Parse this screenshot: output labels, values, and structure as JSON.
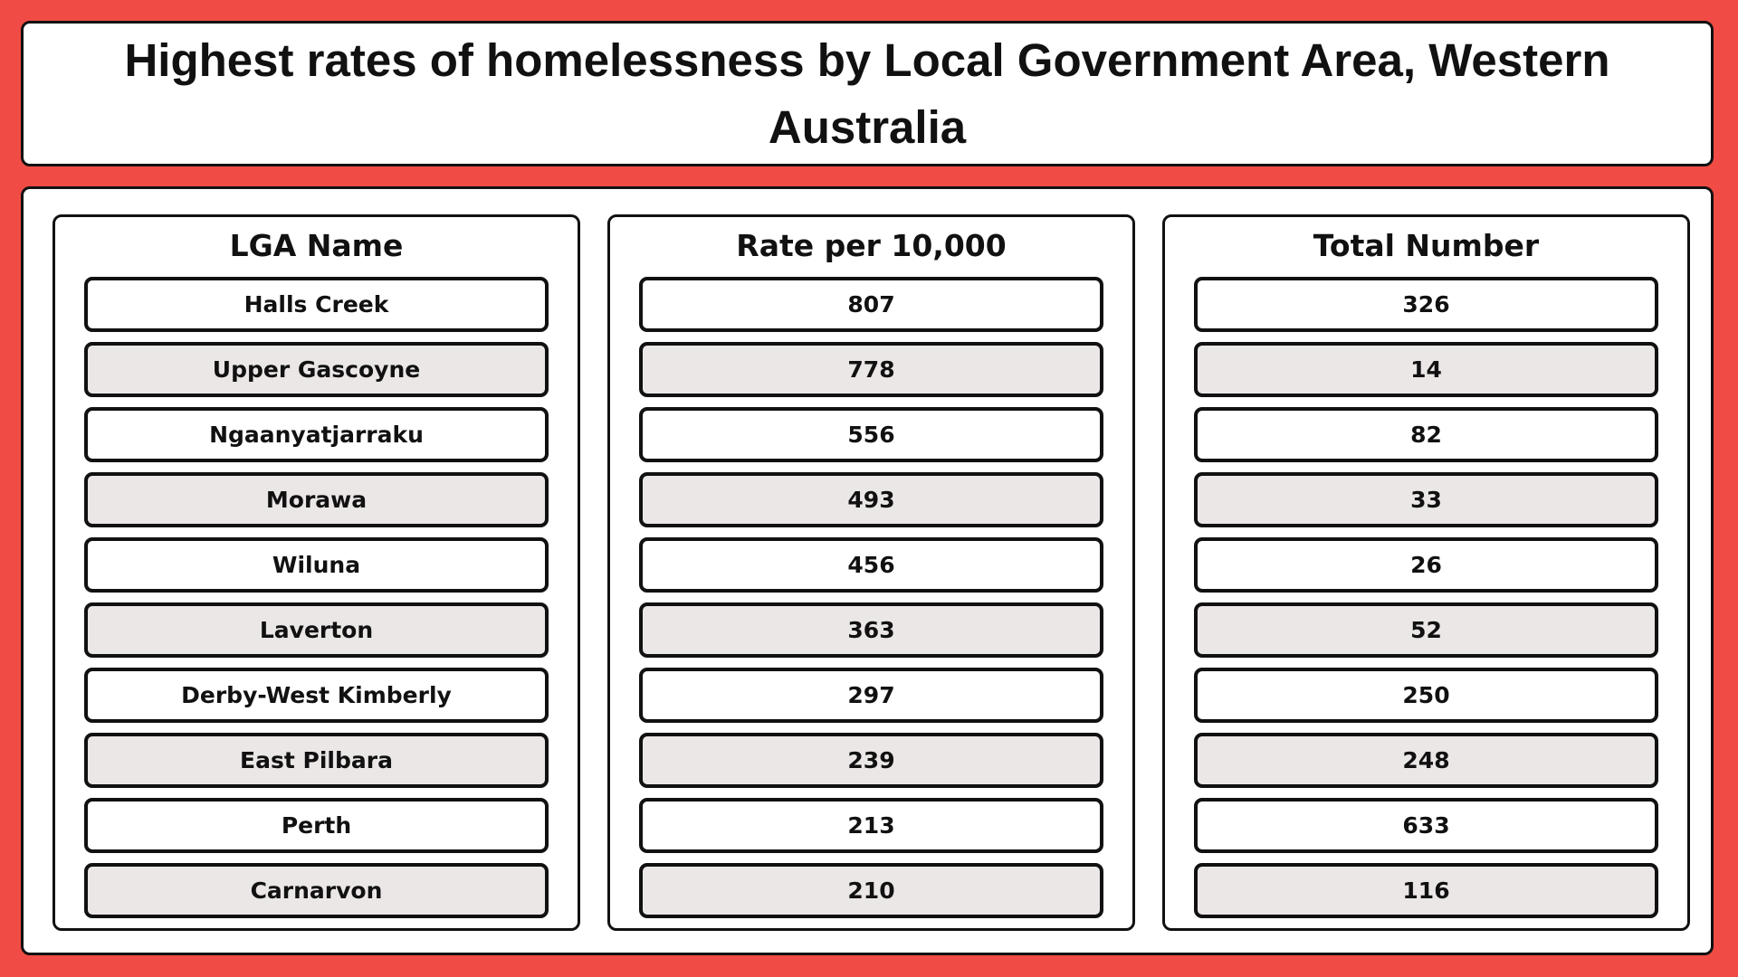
{
  "title": "Highest rates of homelessness by Local Government Area, Western Australia",
  "columns": [
    {
      "header": "LGA Name"
    },
    {
      "header": "Rate per 10,000"
    },
    {
      "header": "Total Number"
    }
  ],
  "chart_data": {
    "type": "table",
    "title": "Highest rates of homelessness by Local Government Area, Western Australia",
    "columns": [
      "LGA Name",
      "Rate per 10,000",
      "Total Number"
    ],
    "rows": [
      [
        "Halls Creek",
        "807",
        "326"
      ],
      [
        "Upper Gascoyne",
        "778",
        "14"
      ],
      [
        "Ngaanyatjarraku",
        "556",
        "82"
      ],
      [
        "Morawa",
        "493",
        "33"
      ],
      [
        "Wiluna",
        "456",
        "26"
      ],
      [
        "Laverton",
        "363",
        "52"
      ],
      [
        "Derby-West Kimberly",
        "297",
        "250"
      ],
      [
        "East Pilbara",
        "239",
        "248"
      ],
      [
        "Perth",
        "213",
        "633"
      ],
      [
        "Carnarvon",
        "210",
        "116"
      ]
    ]
  },
  "colors": {
    "frame": "#f04c45",
    "panel": "#ffffff",
    "stripe": "#ebe7e6",
    "border": "#111111"
  }
}
